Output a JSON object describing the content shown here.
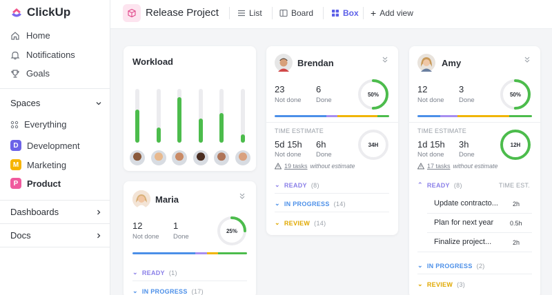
{
  "app": {
    "name": "ClickUp"
  },
  "colors": {
    "accent": "#5b5fe8",
    "green": "#4cbc4c",
    "ready": "#8a7fe8",
    "inprogress": "#4b8fe8",
    "review": "#f0b400"
  },
  "sidebar": {
    "nav": [
      {
        "label": "Home",
        "icon": "home-icon"
      },
      {
        "label": "Notifications",
        "icon": "bell-icon"
      },
      {
        "label": "Goals",
        "icon": "trophy-icon"
      }
    ],
    "spaces_label": "Spaces",
    "everything_label": "Everything",
    "spaces": [
      {
        "letter": "D",
        "label": "Development",
        "color": "#6c63e8"
      },
      {
        "letter": "M",
        "label": "Marketing",
        "color": "#f6b400"
      },
      {
        "letter": "P",
        "label": "Product",
        "color": "#f05a9e"
      }
    ],
    "dashboards_label": "Dashboards",
    "docs_label": "Docs"
  },
  "header": {
    "project": "Release Project",
    "views": {
      "list": "List",
      "board": "Board",
      "box": "Box",
      "add": "Add view"
    }
  },
  "workload": {
    "title": "Workload",
    "bars": [
      {
        "value": 0.62,
        "skin": "#8a5a3c"
      },
      {
        "value": 0.28,
        "skin": "#e8b98e"
      },
      {
        "value": 0.85,
        "skin": "#c98a66"
      },
      {
        "value": 0.45,
        "skin": "#4a2e22"
      },
      {
        "value": 0.55,
        "skin": "#b0765a"
      },
      {
        "value": 0.15,
        "skin": "#d9a17f"
      }
    ]
  },
  "people": {
    "brendan": {
      "name": "Brendan",
      "not_done": "23",
      "done": "6",
      "percent": 50,
      "percent_label": "50%",
      "est_not_done": "5d 15h",
      "est_done": "6h",
      "est_ring": "34H",
      "no_est_link": "19 tasks",
      "no_est_rest": "without estimate",
      "ready": "(8)",
      "inprogress": "(14)",
      "review": "(14)"
    },
    "amy": {
      "name": "Amy",
      "not_done": "12",
      "done": "3",
      "percent": 50,
      "percent_label": "50%",
      "est_not_done": "1d 15h",
      "est_done": "3h",
      "est_ring": "12H",
      "no_est_link": "17 tasks",
      "no_est_rest": "without estimate",
      "ready": "(8)",
      "inprogress": "(2)",
      "review": "(3)",
      "time_est_header": "TIME EST.",
      "tasks": [
        {
          "name": "Update contracto...",
          "time": "2h"
        },
        {
          "name": "Plan for next year",
          "time": "0.5h"
        },
        {
          "name": "Finalize project...",
          "time": "2h"
        }
      ]
    },
    "maria": {
      "name": "Maria",
      "not_done": "12",
      "done": "1",
      "percent": 25,
      "percent_label": "25%",
      "ready": "(1)",
      "inprogress": "(17)"
    }
  },
  "labels": {
    "not_done": "Not done",
    "done": "Done",
    "time_estimate": "TIME ESTIMATE",
    "ready": "READY",
    "in_progress": "IN PROGRESS",
    "review": "REVIEW"
  }
}
